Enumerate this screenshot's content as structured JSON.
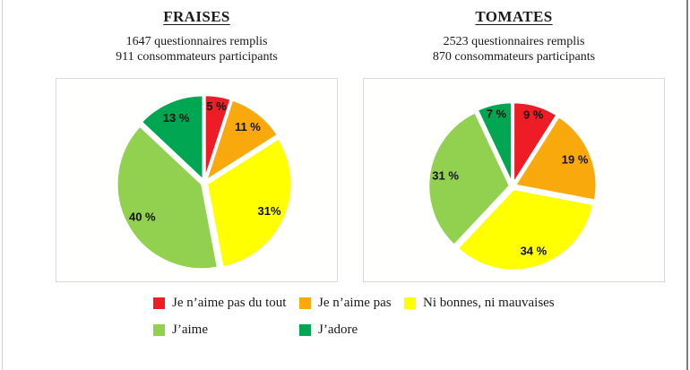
{
  "chart_data": [
    {
      "type": "pie",
      "title": "FRAISES",
      "subtitle1": "1647 questionnaires remplis",
      "subtitle2": "911 consommateurs participants",
      "categories": [
        "Je n’aime pas du tout",
        "Je n’aime pas",
        "Ni bonnes, ni mauvaises",
        "J’aime",
        "J’adore"
      ],
      "values": [
        5,
        11,
        31,
        40,
        13
      ],
      "labels": [
        "5 %",
        "11 %",
        "31%",
        "40 %",
        "13 %"
      ],
      "colors": [
        "#EE1C25",
        "#F9A90B",
        "#FFFF00",
        "#92D050",
        "#00A651"
      ],
      "start_angle_deg": 0,
      "direction": "clockwise",
      "slice_border_color": "#FFFFFF",
      "legend_position": "shared-bottom"
    },
    {
      "type": "pie",
      "title": "TOMATES",
      "subtitle1": "2523 questionnaires remplis",
      "subtitle2": "870 consommateurs participants",
      "categories": [
        "Je n’aime pas du tout",
        "Je n’aime pas",
        "Ni bonnes, ni mauvaises",
        "J’aime",
        "J’adore"
      ],
      "values": [
        9,
        19,
        34,
        31,
        7
      ],
      "labels": [
        "9 %",
        "19 %",
        "34 %",
        "31 %",
        "7 %"
      ],
      "colors": [
        "#EE1C25",
        "#F9A90B",
        "#FFFF00",
        "#92D050",
        "#00A651"
      ],
      "start_angle_deg": 0,
      "direction": "clockwise",
      "slice_border_color": "#FFFFFF",
      "legend_position": "shared-bottom"
    }
  ],
  "legend": {
    "items": [
      {
        "label": "Je n’aime pas du tout",
        "color": "#EE1C25"
      },
      {
        "label": "Je n’aime pas",
        "color": "#F9A90B"
      },
      {
        "label": "Ni bonnes, ni mauvaises",
        "color": "#FFFF00"
      },
      {
        "label": "J’aime",
        "color": "#92D050"
      },
      {
        "label": "J’adore",
        "color": "#00A651"
      }
    ]
  }
}
